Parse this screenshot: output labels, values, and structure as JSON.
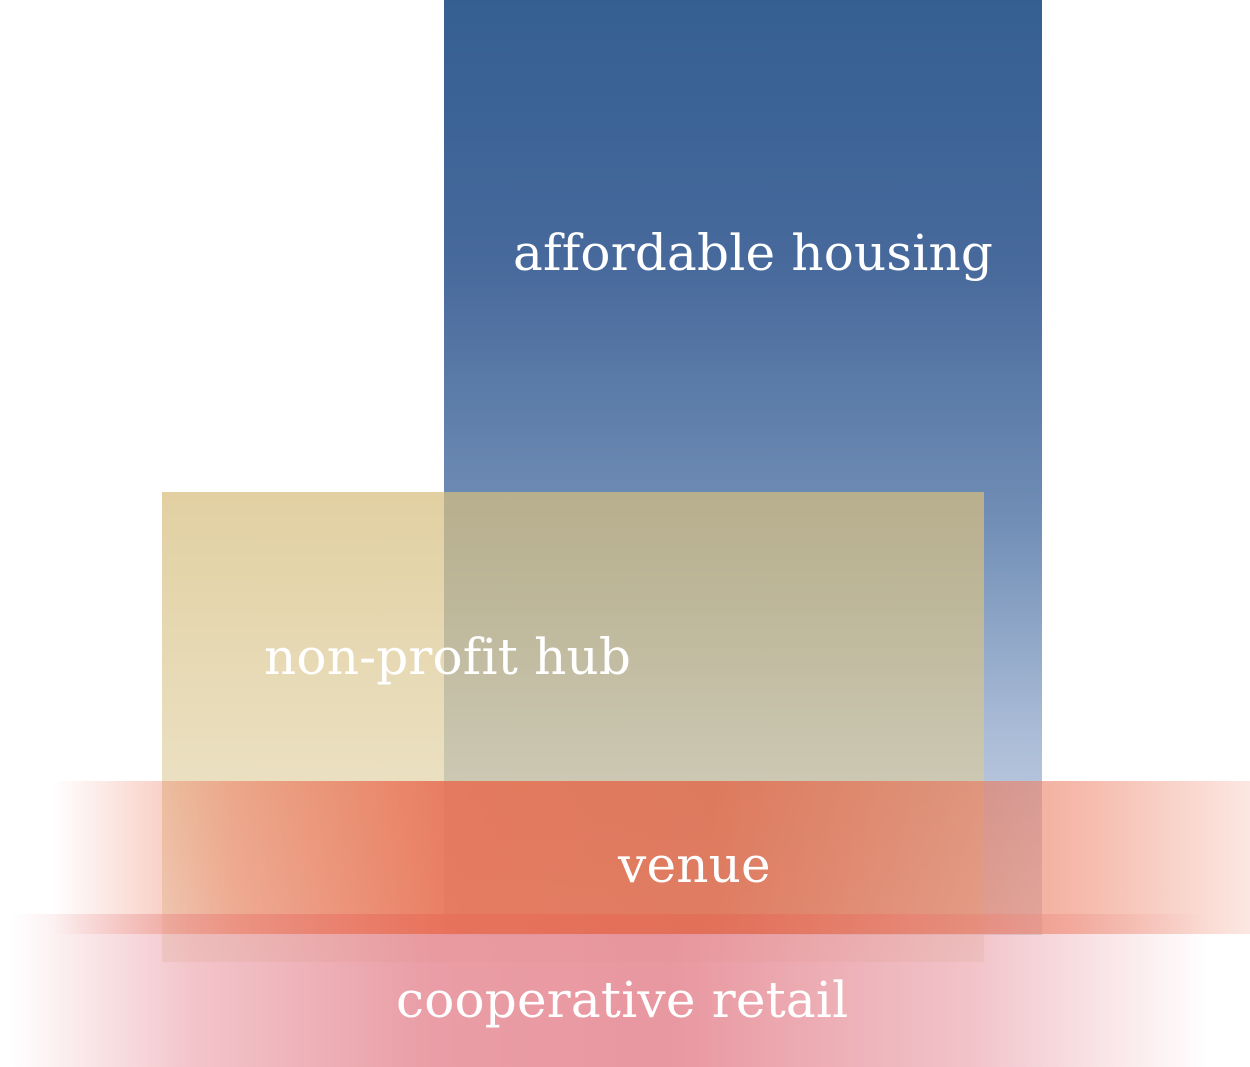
{
  "blocks": {
    "affordable_housing": {
      "label": "affordable housing",
      "color": "#3a6193"
    },
    "non_profit_hub": {
      "label": "non-profit hub",
      "color": "#d8c38f"
    },
    "venue": {
      "label": "venue",
      "color": "#e0704f"
    },
    "cooperative_retail": {
      "label": "cooperative retail",
      "color": "#e8929c"
    }
  }
}
